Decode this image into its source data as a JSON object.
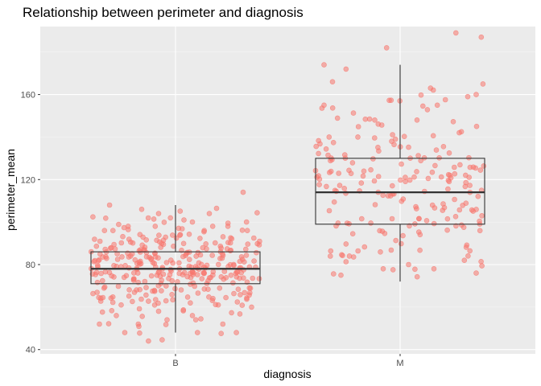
{
  "chart_data": {
    "type": "boxplot-with-jitter",
    "title": "Relationship between perimeter and diagnosis",
    "xlabel": "diagnosis",
    "ylabel": "perimeter_mean",
    "ylim": [
      38,
      192
    ],
    "yticks": [
      40,
      80,
      120,
      160
    ],
    "grid": true,
    "categories": [
      "B",
      "M"
    ],
    "colors": {
      "panel": "#EBEBEB",
      "grid": "#FFFFFF",
      "point": "#F8766D",
      "box": "#333333"
    },
    "boxes": [
      {
        "category": "B",
        "min": 48,
        "q1": 71,
        "median": 78,
        "q3": 86,
        "max": 108
      },
      {
        "category": "M",
        "min": 72,
        "q1": 99,
        "median": 114,
        "q3": 130,
        "max": 174
      }
    ],
    "points": {
      "B": [
        [
          0.11,
          108
        ],
        [
          0.9,
          114
        ],
        [
          0.3,
          106
        ],
        [
          0.4,
          104
        ],
        [
          0.7,
          104
        ],
        [
          0.34,
          44
        ],
        [
          0.63,
          48
        ],
        [
          0.86,
          48
        ],
        [
          0.2,
          48
        ],
        [
          0.28,
          52
        ],
        [
          0.45,
          54
        ],
        [
          0.05,
          52
        ],
        [
          0.62,
          54
        ],
        [
          0.78,
          52
        ],
        [
          0.6,
          56
        ],
        [
          0.15,
          56
        ],
        [
          0.4,
          58
        ],
        [
          0.95,
          60
        ],
        [
          0.22,
          98
        ],
        [
          0.72,
          98
        ],
        [
          0.08,
          96
        ],
        [
          0.81,
          98
        ],
        [
          0.55,
          101
        ],
        [
          0.38,
          98
        ],
        [
          0.6,
          100
        ],
        [
          0.92,
          100
        ],
        [
          0.47,
          102
        ],
        [
          0.13,
          96
        ],
        [
          0.67,
          96
        ]
      ],
      "M": [
        [
          0.83,
          189
        ],
        [
          0.98,
          187
        ],
        [
          0.42,
          182
        ],
        [
          0.05,
          174
        ],
        [
          0.18,
          172
        ],
        [
          0.1,
          166
        ],
        [
          0.99,
          165
        ],
        [
          0.68,
          163
        ],
        [
          0.05,
          155
        ],
        [
          0.9,
          159
        ],
        [
          0.35,
          148
        ],
        [
          0.72,
          155
        ],
        [
          0.95,
          160
        ],
        [
          0.6,
          148
        ],
        [
          0.08,
          140
        ],
        [
          0.45,
          138
        ],
        [
          0.25,
          140
        ],
        [
          0.85,
          142
        ],
        [
          0.15,
          75
        ],
        [
          0.4,
          78
        ],
        [
          0.7,
          78
        ],
        [
          0.55,
          80
        ],
        [
          0.95,
          76
        ],
        [
          0.2,
          84
        ],
        [
          0.88,
          82
        ]
      ]
    },
    "jitter_count": {
      "B": 320,
      "M": 190
    }
  }
}
